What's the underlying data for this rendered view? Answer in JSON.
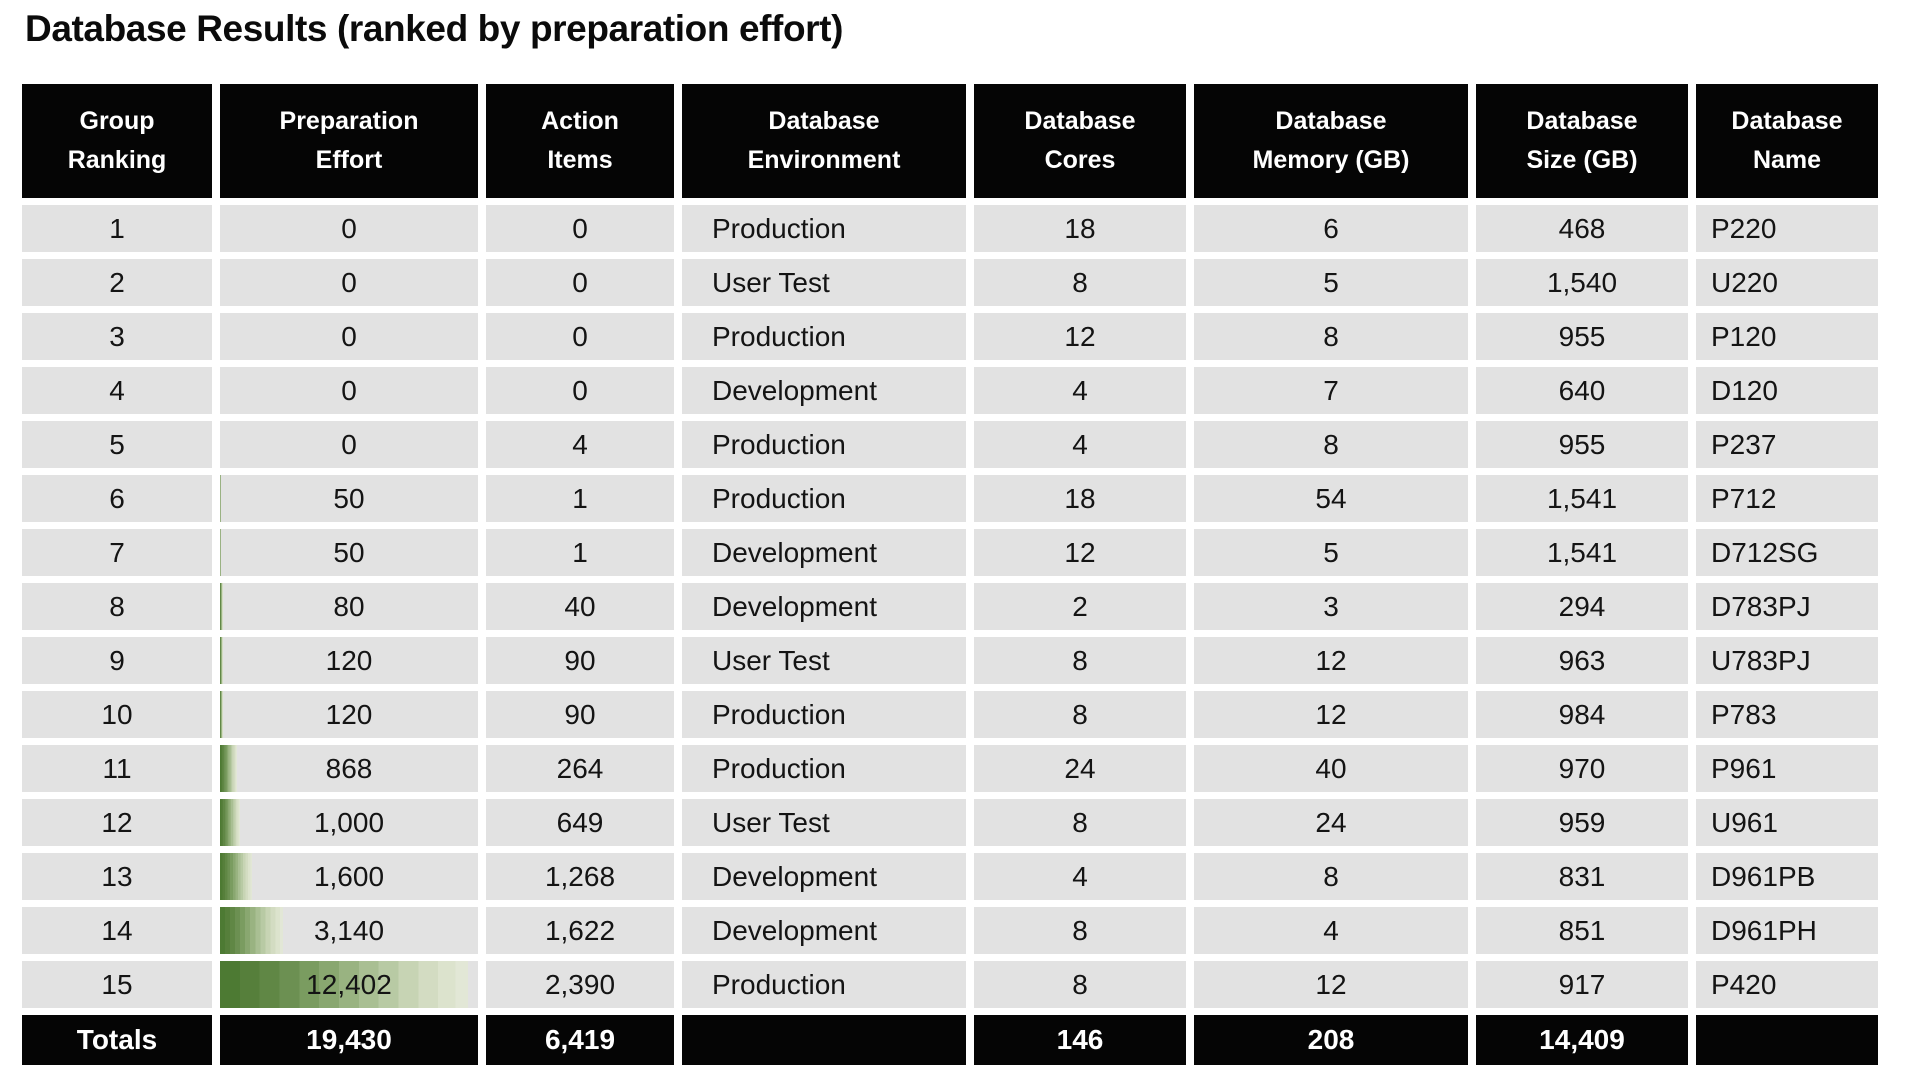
{
  "title": "Database Results (ranked by preparation effort)",
  "chart_data": {
    "type": "table",
    "title": "Database Results (ranked by preparation effort)",
    "columns": [
      {
        "line1": "Group",
        "line2": "Ranking"
      },
      {
        "line1": "Preparation",
        "line2": "Effort"
      },
      {
        "line1": "Action",
        "line2": "Items"
      },
      {
        "line1": "Database",
        "line2": "Environment"
      },
      {
        "line1": "Database",
        "line2": "Cores"
      },
      {
        "line1": "Database",
        "line2": "Memory (GB)"
      },
      {
        "line1": "Database",
        "line2": "Size (GB)"
      },
      {
        "line1": "Database",
        "line2": "Name"
      }
    ],
    "rows": [
      {
        "ranking": "1",
        "effort": "0",
        "effort_value": 0,
        "items": "0",
        "environment": "Production",
        "cores": "18",
        "memory": "6",
        "size": "468",
        "name": "P220"
      },
      {
        "ranking": "2",
        "effort": "0",
        "effort_value": 0,
        "items": "0",
        "environment": "User Test",
        "cores": "8",
        "memory": "5",
        "size": "1,540",
        "name": "U220"
      },
      {
        "ranking": "3",
        "effort": "0",
        "effort_value": 0,
        "items": "0",
        "environment": "Production",
        "cores": "12",
        "memory": "8",
        "size": "955",
        "name": "P120"
      },
      {
        "ranking": "4",
        "effort": "0",
        "effort_value": 0,
        "items": "0",
        "environment": "Development",
        "cores": "4",
        "memory": "7",
        "size": "640",
        "name": "D120"
      },
      {
        "ranking": "5",
        "effort": "0",
        "effort_value": 0,
        "items": "4",
        "environment": "Production",
        "cores": "4",
        "memory": "8",
        "size": "955",
        "name": "P237"
      },
      {
        "ranking": "6",
        "effort": "50",
        "effort_value": 50,
        "items": "1",
        "environment": "Production",
        "cores": "18",
        "memory": "54",
        "size": "1,541",
        "name": "P712"
      },
      {
        "ranking": "7",
        "effort": "50",
        "effort_value": 50,
        "items": "1",
        "environment": "Development",
        "cores": "12",
        "memory": "5",
        "size": "1,541",
        "name": "D712SG"
      },
      {
        "ranking": "8",
        "effort": "80",
        "effort_value": 80,
        "items": "40",
        "environment": "Development",
        "cores": "2",
        "memory": "3",
        "size": "294",
        "name": "D783PJ"
      },
      {
        "ranking": "9",
        "effort": "120",
        "effort_value": 120,
        "items": "90",
        "environment": "User Test",
        "cores": "8",
        "memory": "12",
        "size": "963",
        "name": "U783PJ"
      },
      {
        "ranking": "10",
        "effort": "120",
        "effort_value": 120,
        "items": "90",
        "environment": "Production",
        "cores": "8",
        "memory": "12",
        "size": "984",
        "name": "P783"
      },
      {
        "ranking": "11",
        "effort": "868",
        "effort_value": 868,
        "items": "264",
        "environment": "Production",
        "cores": "24",
        "memory": "40",
        "size": "970",
        "name": "P961"
      },
      {
        "ranking": "12",
        "effort": "1,000",
        "effort_value": 1000,
        "items": "649",
        "environment": "User Test",
        "cores": "8",
        "memory": "24",
        "size": "959",
        "name": "U961"
      },
      {
        "ranking": "13",
        "effort": "1,600",
        "effort_value": 1600,
        "items": "1,268",
        "environment": "Development",
        "cores": "4",
        "memory": "8",
        "size": "831",
        "name": "D961PB"
      },
      {
        "ranking": "14",
        "effort": "3,140",
        "effort_value": 3140,
        "items": "1,622",
        "environment": "Development",
        "cores": "8",
        "memory": "4",
        "size": "851",
        "name": "D961PH"
      },
      {
        "ranking": "15",
        "effort": "12,402",
        "effort_value": 12402,
        "items": "2,390",
        "environment": "Production",
        "cores": "8",
        "memory": "12",
        "size": "917",
        "name": "P420"
      }
    ],
    "totals": {
      "label": "Totals",
      "effort": "19,430",
      "items": "6,419",
      "environment": "",
      "cores": "146",
      "memory": "208",
      "size": "14,409",
      "name": ""
    },
    "databar": {
      "column": "Preparation Effort",
      "max_value": 12402,
      "color_dark": "#4d7a33",
      "color_light": "#e2e7d6",
      "row_fill": "#e2e2e2",
      "header_fill": "#050505"
    },
    "layout": {
      "grid": "off",
      "header_position": "top",
      "totals_position": "bottom"
    }
  }
}
